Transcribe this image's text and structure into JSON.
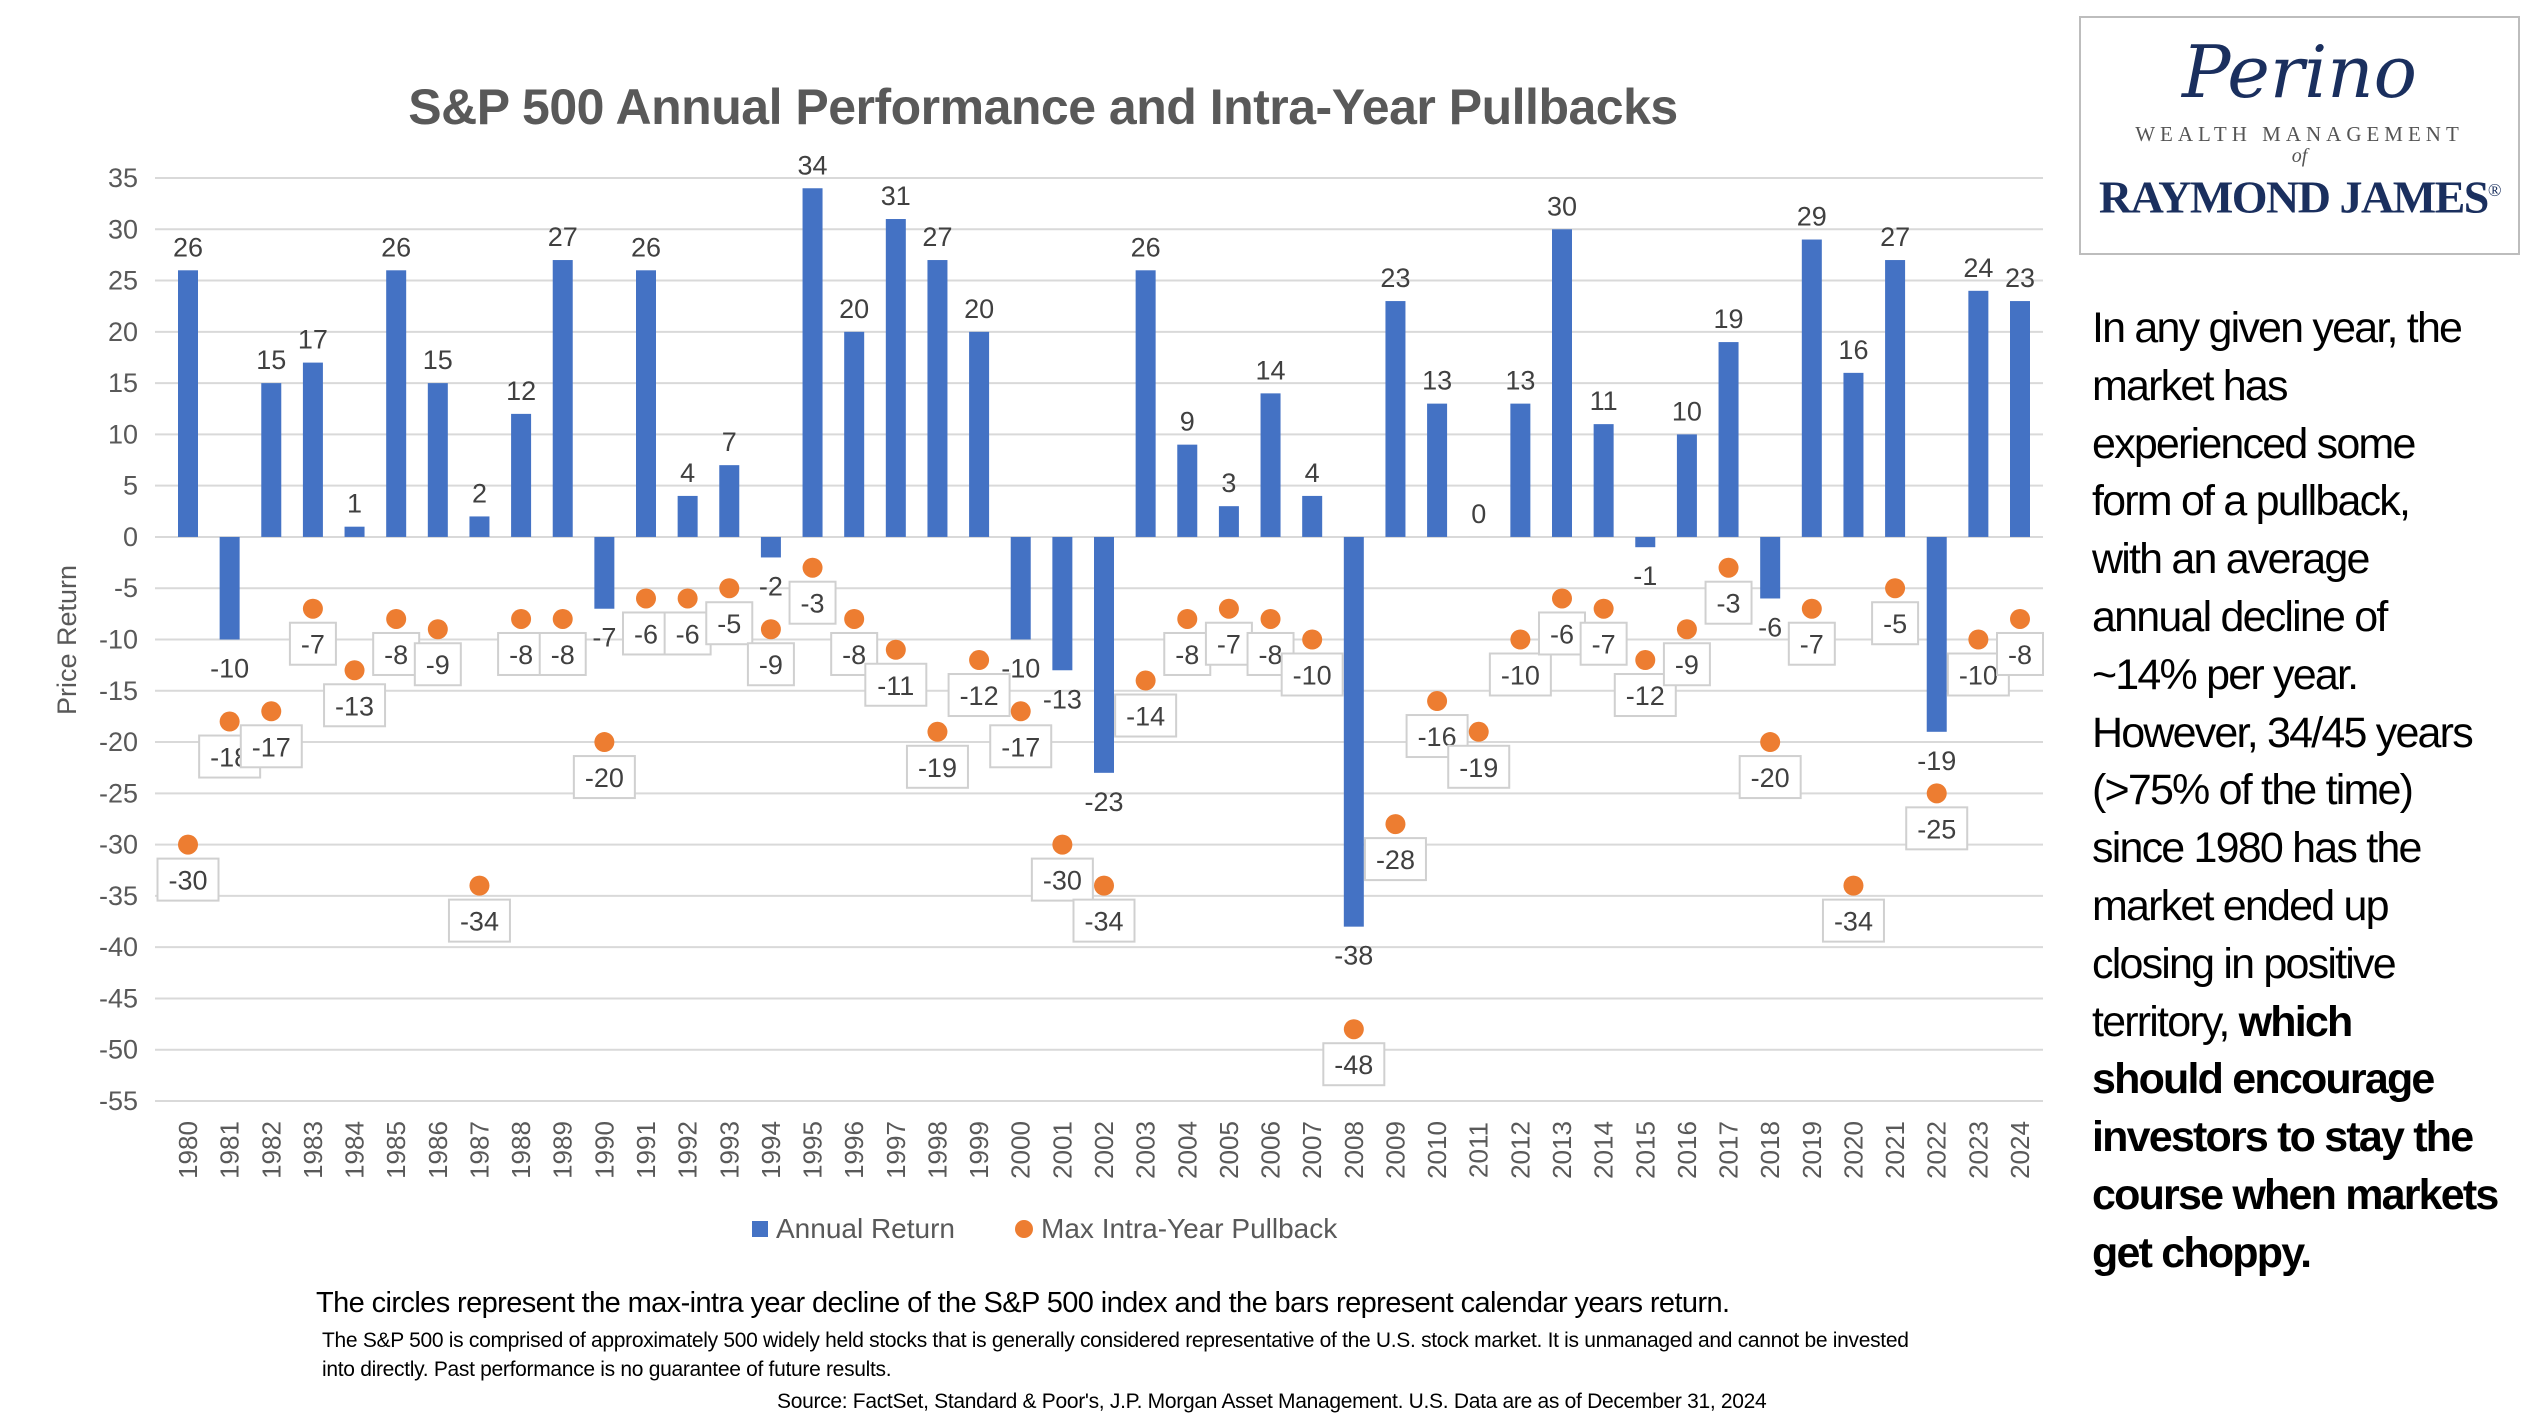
{
  "chart_data": {
    "type": "bar",
    "title": "S&P 500 Annual Performance and Intra-Year Pullbacks",
    "ylabel": "Price Return",
    "xlabel": "",
    "ylim": [
      -55,
      35
    ],
    "yticks": [
      35,
      30,
      25,
      20,
      15,
      10,
      5,
      0,
      -5,
      -10,
      -15,
      -20,
      -25,
      -30,
      -35,
      -40,
      -45,
      -50,
      -55
    ],
    "grid": true,
    "legend_position": "bottom",
    "categories": [
      "1980",
      "1981",
      "1982",
      "1983",
      "1984",
      "1985",
      "1986",
      "1987",
      "1988",
      "1989",
      "1990",
      "1991",
      "1992",
      "1993",
      "1994",
      "1995",
      "1996",
      "1997",
      "1998",
      "1999",
      "2000",
      "2001",
      "2002",
      "2003",
      "2004",
      "2005",
      "2006",
      "2007",
      "2008",
      "2009",
      "2010",
      "2011",
      "2012",
      "2013",
      "2014",
      "2015",
      "2016",
      "2017",
      "2018",
      "2019",
      "2020",
      "2021",
      "2022",
      "2023",
      "2024"
    ],
    "series": [
      {
        "name": "Annual Return",
        "type": "bar",
        "color": "#4472c4",
        "values": [
          26,
          -10,
          15,
          17,
          1,
          26,
          15,
          2,
          12,
          27,
          -7,
          26,
          4,
          7,
          -2,
          34,
          20,
          31,
          27,
          20,
          -10,
          -13,
          -23,
          26,
          9,
          3,
          14,
          4,
          -38,
          23,
          13,
          0,
          13,
          30,
          11,
          -1,
          10,
          19,
          -6,
          29,
          16,
          27,
          -19,
          24,
          23
        ]
      },
      {
        "name": "Max Intra-Year Pullback",
        "type": "scatter",
        "color": "#ed7d31",
        "values": [
          -30,
          -18,
          -17,
          -7,
          -13,
          -8,
          -9,
          -34,
          -8,
          -8,
          -20,
          -6,
          -6,
          -5,
          -9,
          -3,
          -8,
          -11,
          -19,
          -12,
          -17,
          -30,
          -34,
          -14,
          -8,
          -7,
          -8,
          -10,
          -48,
          -28,
          -16,
          -19,
          -10,
          -6,
          -7,
          -12,
          -9,
          -3,
          -20,
          -7,
          -34,
          -5,
          -25,
          -10,
          -8
        ]
      }
    ]
  },
  "logo": {
    "name": "Perino",
    "subtitle": "WEALTH MANAGEMENT",
    "of": "of",
    "brand": "RAYMOND JAMES",
    "reg": "®"
  },
  "side_text": {
    "lines": [
      {
        "normal": "In any given year, the",
        "bold": ""
      },
      {
        "normal": "market has",
        "bold": ""
      },
      {
        "normal": "experienced some",
        "bold": ""
      },
      {
        "normal": "form of a pullback,",
        "bold": ""
      },
      {
        "normal": "with an average",
        "bold": ""
      },
      {
        "normal": "annual decline of",
        "bold": ""
      },
      {
        "normal": "~14% per year.",
        "bold": ""
      },
      {
        "normal": "However, 34/45 years",
        "bold": ""
      },
      {
        "normal": "(>75% of the time)",
        "bold": ""
      },
      {
        "normal": "since 1980 has the",
        "bold": ""
      },
      {
        "normal": "market ended up",
        "bold": ""
      },
      {
        "normal": "closing in positive",
        "bold": ""
      },
      {
        "normal": "territory, ",
        "bold": "which"
      },
      {
        "normal": "",
        "bold": "should encourage"
      },
      {
        "normal": "",
        "bold": "investors to stay the"
      },
      {
        "normal": "",
        "bold": "course when markets"
      },
      {
        "normal": "",
        "bold": "get choppy."
      }
    ]
  },
  "notes": {
    "main": "The circles represent the max-intra year decline of the S&P 500 index and the bars represent calendar years return.",
    "disclaimer": "The S&P 500 is comprised of approximately 500 widely held stocks that is generally considered representative of the U.S. stock market. It is unmanaged and cannot be invested into directly. Past performance is no guarantee of future results.",
    "source": "Source: FactSet, Standard & Poor's, J.P. Morgan Asset Management. U.S. Data are as of December 31, 2024"
  }
}
